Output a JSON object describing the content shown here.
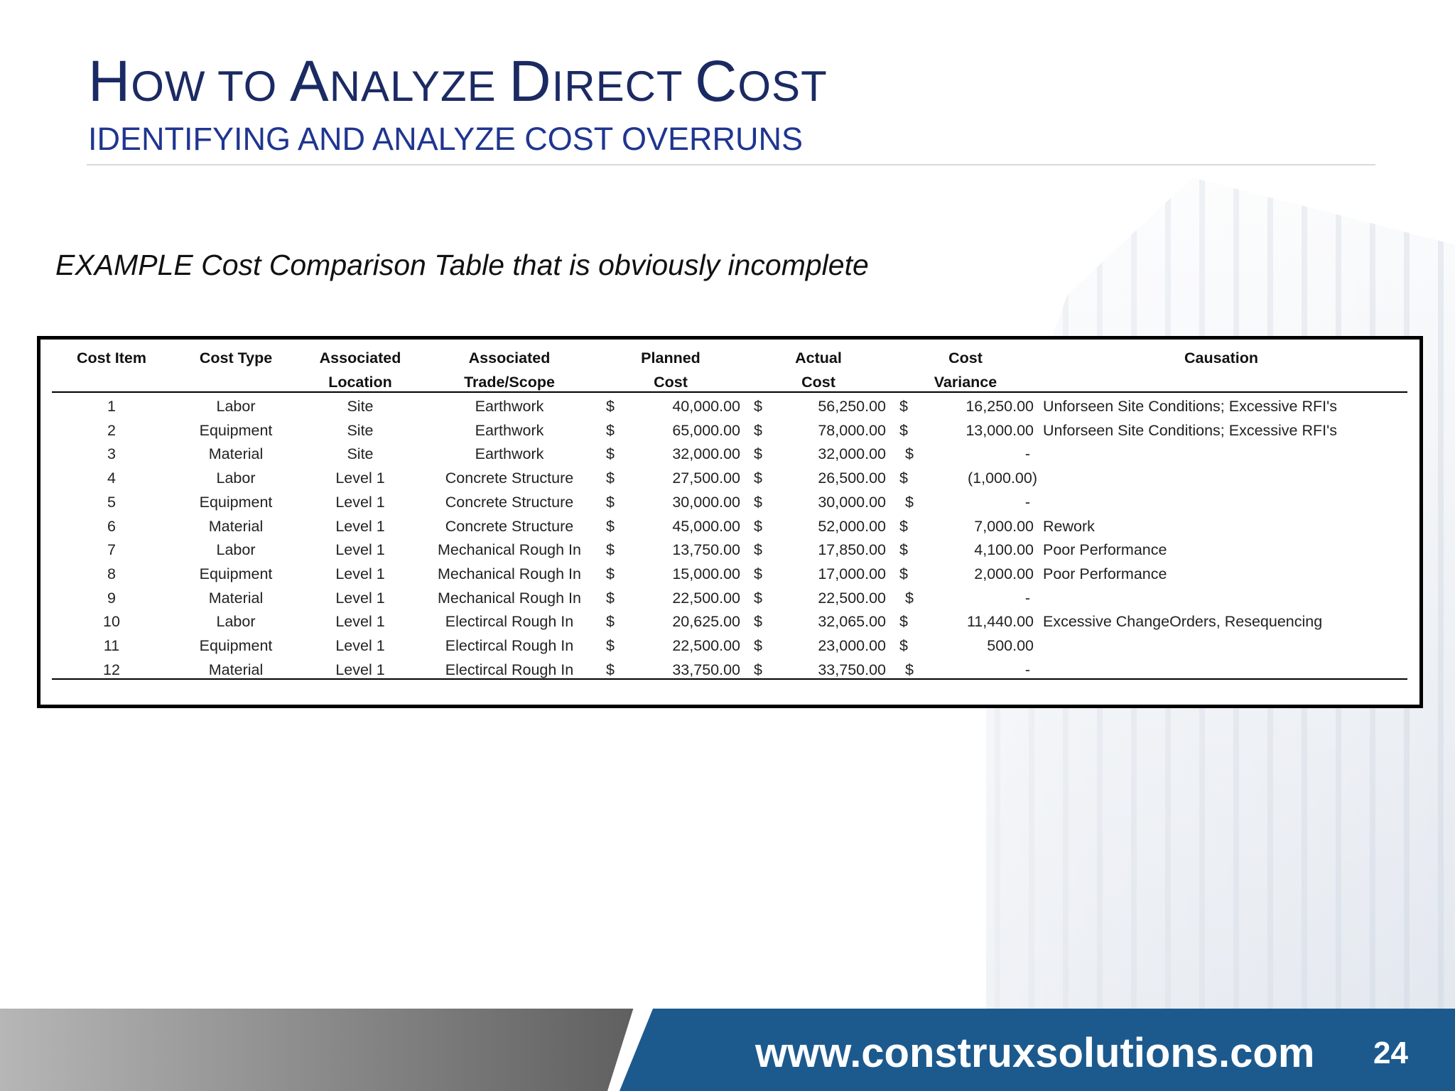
{
  "slide": {
    "title_parts": [
      {
        "initial": "H",
        "rest": "OW TO "
      },
      {
        "initial": "A",
        "rest": "NALYZE "
      },
      {
        "initial": "D",
        "rest": "IRECT "
      },
      {
        "initial": "C",
        "rest": "OST"
      }
    ],
    "subtitle": "IDENTIFYING AND ANALYZE COST OVERRUNS",
    "caption": "EXAMPLE Cost Comparison Table that is obviously incomplete",
    "footer_url": "www.construxsolutions.com",
    "page_number": "24",
    "colors": {
      "title": "#1b2a63",
      "footer_blue": "#1c5a8e"
    }
  },
  "table": {
    "headers": {
      "cost_item": [
        "Cost Item",
        ""
      ],
      "cost_type": [
        "Cost Type",
        ""
      ],
      "location": [
        "Associated",
        "Location"
      ],
      "trade": [
        "Associated",
        "Trade/Scope"
      ],
      "planned": [
        "Planned",
        "Cost"
      ],
      "actual": [
        "Actual",
        "Cost"
      ],
      "variance": [
        "Cost",
        "Variance"
      ],
      "causation": [
        "Causation",
        ""
      ]
    },
    "currency_symbol": "$",
    "rows": [
      {
        "item": "1",
        "type": "Labor",
        "location": "Site",
        "trade": "Earthwork",
        "planned": "40,000.00",
        "actual": "56,250.00",
        "variance": "16,250.00",
        "causation": "Unforseen Site Conditions; Excessive RFI's"
      },
      {
        "item": "2",
        "type": "Equipment",
        "location": "Site",
        "trade": "Earthwork",
        "planned": "65,000.00",
        "actual": "78,000.00",
        "variance": "13,000.00",
        "causation": "Unforseen Site Conditions; Excessive RFI's"
      },
      {
        "item": "3",
        "type": "Material",
        "location": "Site",
        "trade": "Earthwork",
        "planned": "32,000.00",
        "actual": "32,000.00",
        "variance": "-",
        "causation": ""
      },
      {
        "item": "4",
        "type": "Labor",
        "location": "Level 1",
        "trade": "Concrete Structure",
        "planned": "27,500.00",
        "actual": "26,500.00",
        "variance": "(1,000.00)",
        "causation": ""
      },
      {
        "item": "5",
        "type": "Equipment",
        "location": "Level 1",
        "trade": "Concrete Structure",
        "planned": "30,000.00",
        "actual": "30,000.00",
        "variance": "-",
        "causation": ""
      },
      {
        "item": "6",
        "type": "Material",
        "location": "Level 1",
        "trade": "Concrete Structure",
        "planned": "45,000.00",
        "actual": "52,000.00",
        "variance": "7,000.00",
        "causation": "Rework"
      },
      {
        "item": "7",
        "type": "Labor",
        "location": "Level 1",
        "trade": "Mechanical Rough In",
        "planned": "13,750.00",
        "actual": "17,850.00",
        "variance": "4,100.00",
        "causation": "Poor Performance"
      },
      {
        "item": "8",
        "type": "Equipment",
        "location": "Level 1",
        "trade": "Mechanical Rough In",
        "planned": "15,000.00",
        "actual": "17,000.00",
        "variance": "2,000.00",
        "causation": "Poor Performance"
      },
      {
        "item": "9",
        "type": "Material",
        "location": "Level 1",
        "trade": "Mechanical Rough In",
        "planned": "22,500.00",
        "actual": "22,500.00",
        "variance": "-",
        "causation": ""
      },
      {
        "item": "10",
        "type": "Labor",
        "location": "Level 1",
        "trade": "Electircal Rough In",
        "planned": "20,625.00",
        "actual": "32,065.00",
        "variance": "11,440.00",
        "causation": "Excessive ChangeOrders, Resequencing"
      },
      {
        "item": "11",
        "type": "Equipment",
        "location": "Level 1",
        "trade": "Electircal Rough In",
        "planned": "22,500.00",
        "actual": "23,000.00",
        "variance": "500.00",
        "causation": ""
      },
      {
        "item": "12",
        "type": "Material",
        "location": "Level 1",
        "trade": "Electircal Rough In",
        "planned": "33,750.00",
        "actual": "33,750.00",
        "variance": "-",
        "causation": ""
      }
    ]
  }
}
